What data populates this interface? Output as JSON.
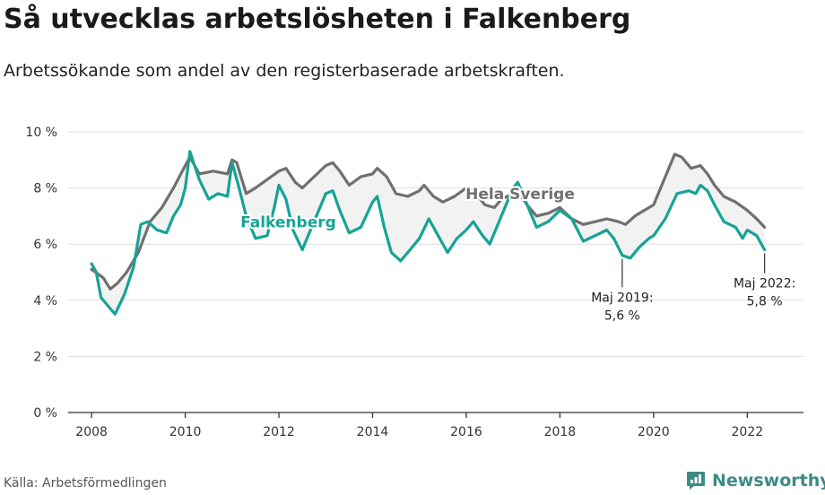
{
  "title": "Så utvecklas arbetslösheten i Falkenberg",
  "subtitle": "Arbetssökande som andel av den registerbaserade arbetskraften.",
  "source": "Källa: Arbetsförmedlingen",
  "brand": {
    "name": "Newsworthy",
    "icon": "newsworthy-logo-icon",
    "color": "#3d8b84"
  },
  "chart_data": {
    "type": "line",
    "title": "Så utvecklas arbetslösheten i Falkenberg",
    "subtitle": "Arbetssökande som andel av den registerbaserade arbetskraften.",
    "xlabel": "",
    "ylabel": "",
    "xlim": [
      2007.5,
      2023.2
    ],
    "ylim": [
      0,
      10
    ],
    "x_ticks": [
      2008,
      2010,
      2012,
      2014,
      2016,
      2018,
      2020,
      2022
    ],
    "x_tick_labels": [
      "2008",
      "2010",
      "2012",
      "2014",
      "2016",
      "2018",
      "2020",
      "2022"
    ],
    "y_ticks": [
      0,
      2,
      4,
      6,
      8,
      10
    ],
    "y_tick_labels": [
      "0 %",
      "2 %",
      "4 %",
      "6 %",
      "8 %",
      "10 %"
    ],
    "grid": "horizontal",
    "fill_between": {
      "color": "#f2f2f2"
    },
    "series": [
      {
        "name": "Hela Sverige",
        "color": "#707070",
        "points": [
          [
            2008.0,
            5.1
          ],
          [
            2008.25,
            4.8
          ],
          [
            2008.4,
            4.4
          ],
          [
            2008.55,
            4.6
          ],
          [
            2008.75,
            5.0
          ],
          [
            2009.0,
            5.7
          ],
          [
            2009.25,
            6.8
          ],
          [
            2009.5,
            7.3
          ],
          [
            2009.75,
            8.0
          ],
          [
            2010.0,
            8.8
          ],
          [
            2010.1,
            9.1
          ],
          [
            2010.3,
            8.5
          ],
          [
            2010.6,
            8.6
          ],
          [
            2010.9,
            8.5
          ],
          [
            2011.0,
            9.0
          ],
          [
            2011.1,
            8.9
          ],
          [
            2011.3,
            7.8
          ],
          [
            2011.5,
            8.0
          ],
          [
            2011.75,
            8.3
          ],
          [
            2012.0,
            8.6
          ],
          [
            2012.15,
            8.7
          ],
          [
            2012.35,
            8.2
          ],
          [
            2012.5,
            8.0
          ],
          [
            2012.75,
            8.4
          ],
          [
            2013.0,
            8.8
          ],
          [
            2013.15,
            8.9
          ],
          [
            2013.3,
            8.6
          ],
          [
            2013.5,
            8.1
          ],
          [
            2013.75,
            8.4
          ],
          [
            2014.0,
            8.5
          ],
          [
            2014.1,
            8.7
          ],
          [
            2014.3,
            8.4
          ],
          [
            2014.5,
            7.8
          ],
          [
            2014.75,
            7.7
          ],
          [
            2015.0,
            7.9
          ],
          [
            2015.1,
            8.1
          ],
          [
            2015.3,
            7.7
          ],
          [
            2015.5,
            7.5
          ],
          [
            2015.75,
            7.7
          ],
          [
            2016.0,
            8.0
          ],
          [
            2016.2,
            7.8
          ],
          [
            2016.4,
            7.4
          ],
          [
            2016.6,
            7.3
          ],
          [
            2016.75,
            7.6
          ],
          [
            2017.0,
            7.8
          ],
          [
            2017.1,
            7.9
          ],
          [
            2017.3,
            7.4
          ],
          [
            2017.5,
            7.0
          ],
          [
            2017.75,
            7.1
          ],
          [
            2018.0,
            7.3
          ],
          [
            2018.25,
            6.9
          ],
          [
            2018.5,
            6.7
          ],
          [
            2018.75,
            6.8
          ],
          [
            2019.0,
            6.9
          ],
          [
            2019.25,
            6.8
          ],
          [
            2019.4,
            6.7
          ],
          [
            2019.6,
            7.0
          ],
          [
            2019.8,
            7.2
          ],
          [
            2020.0,
            7.4
          ],
          [
            2020.25,
            8.4
          ],
          [
            2020.45,
            9.2
          ],
          [
            2020.6,
            9.1
          ],
          [
            2020.8,
            8.7
          ],
          [
            2021.0,
            8.8
          ],
          [
            2021.15,
            8.5
          ],
          [
            2021.3,
            8.1
          ],
          [
            2021.5,
            7.7
          ],
          [
            2021.75,
            7.5
          ],
          [
            2022.0,
            7.2
          ],
          [
            2022.2,
            6.9
          ],
          [
            2022.37,
            6.6
          ]
        ]
      },
      {
        "name": "Falkenberg",
        "color": "#16a396",
        "points": [
          [
            2008.0,
            5.3
          ],
          [
            2008.1,
            5.0
          ],
          [
            2008.2,
            4.1
          ],
          [
            2008.35,
            3.8
          ],
          [
            2008.5,
            3.5
          ],
          [
            2008.7,
            4.2
          ],
          [
            2008.9,
            5.2
          ],
          [
            2009.05,
            6.7
          ],
          [
            2009.2,
            6.8
          ],
          [
            2009.4,
            6.5
          ],
          [
            2009.6,
            6.4
          ],
          [
            2009.75,
            7.0
          ],
          [
            2009.9,
            7.4
          ],
          [
            2010.0,
            8.0
          ],
          [
            2010.1,
            9.3
          ],
          [
            2010.2,
            8.8
          ],
          [
            2010.3,
            8.3
          ],
          [
            2010.5,
            7.6
          ],
          [
            2010.7,
            7.8
          ],
          [
            2010.9,
            7.7
          ],
          [
            2011.0,
            8.9
          ],
          [
            2011.15,
            8.0
          ],
          [
            2011.3,
            7.0
          ],
          [
            2011.5,
            6.2
          ],
          [
            2011.75,
            6.3
          ],
          [
            2011.9,
            7.3
          ],
          [
            2012.0,
            8.1
          ],
          [
            2012.15,
            7.6
          ],
          [
            2012.3,
            6.5
          ],
          [
            2012.5,
            5.8
          ],
          [
            2012.75,
            6.8
          ],
          [
            2013.0,
            7.8
          ],
          [
            2013.15,
            7.9
          ],
          [
            2013.3,
            7.2
          ],
          [
            2013.5,
            6.4
          ],
          [
            2013.75,
            6.6
          ],
          [
            2014.0,
            7.5
          ],
          [
            2014.1,
            7.7
          ],
          [
            2014.25,
            6.6
          ],
          [
            2014.4,
            5.7
          ],
          [
            2014.6,
            5.4
          ],
          [
            2014.8,
            5.8
          ],
          [
            2015.0,
            6.2
          ],
          [
            2015.2,
            6.9
          ],
          [
            2015.4,
            6.3
          ],
          [
            2015.6,
            5.7
          ],
          [
            2015.8,
            6.2
          ],
          [
            2016.0,
            6.5
          ],
          [
            2016.15,
            6.8
          ],
          [
            2016.35,
            6.3
          ],
          [
            2016.5,
            6.0
          ],
          [
            2016.75,
            7.0
          ],
          [
            2017.0,
            8.0
          ],
          [
            2017.1,
            8.2
          ],
          [
            2017.25,
            7.6
          ],
          [
            2017.5,
            6.6
          ],
          [
            2017.75,
            6.8
          ],
          [
            2018.0,
            7.2
          ],
          [
            2018.25,
            6.9
          ],
          [
            2018.5,
            6.1
          ],
          [
            2018.75,
            6.3
          ],
          [
            2019.0,
            6.5
          ],
          [
            2019.15,
            6.2
          ],
          [
            2019.33,
            5.6
          ],
          [
            2019.5,
            5.5
          ],
          [
            2019.7,
            5.9
          ],
          [
            2019.9,
            6.2
          ],
          [
            2020.0,
            6.3
          ],
          [
            2020.25,
            6.9
          ],
          [
            2020.5,
            7.8
          ],
          [
            2020.75,
            7.9
          ],
          [
            2020.9,
            7.8
          ],
          [
            2021.0,
            8.1
          ],
          [
            2021.15,
            7.9
          ],
          [
            2021.3,
            7.4
          ],
          [
            2021.5,
            6.8
          ],
          [
            2021.75,
            6.6
          ],
          [
            2021.9,
            6.2
          ],
          [
            2022.0,
            6.5
          ],
          [
            2022.2,
            6.3
          ],
          [
            2022.37,
            5.8
          ]
        ]
      }
    ],
    "series_labels": [
      {
        "text": "Falkenberg",
        "series": "Falkenberg",
        "color": "#16a396",
        "at": [
          2012.2,
          6.6
        ]
      },
      {
        "text": "Hela Sverige",
        "series": "Hela Sverige",
        "color": "#707070",
        "at": [
          2017.15,
          7.6
        ]
      }
    ],
    "annotations": [
      {
        "point": [
          2019.33,
          5.6
        ],
        "lines": [
          "Maj 2019:",
          "5,6 %"
        ],
        "text_at": [
          2019.33,
          3.95
        ],
        "align": "middle"
      },
      {
        "point": [
          2022.37,
          5.8
        ],
        "lines": [
          "Maj 2022:",
          "5,8 %"
        ],
        "text_at": [
          2022.37,
          4.45
        ],
        "align": "middle"
      }
    ]
  }
}
